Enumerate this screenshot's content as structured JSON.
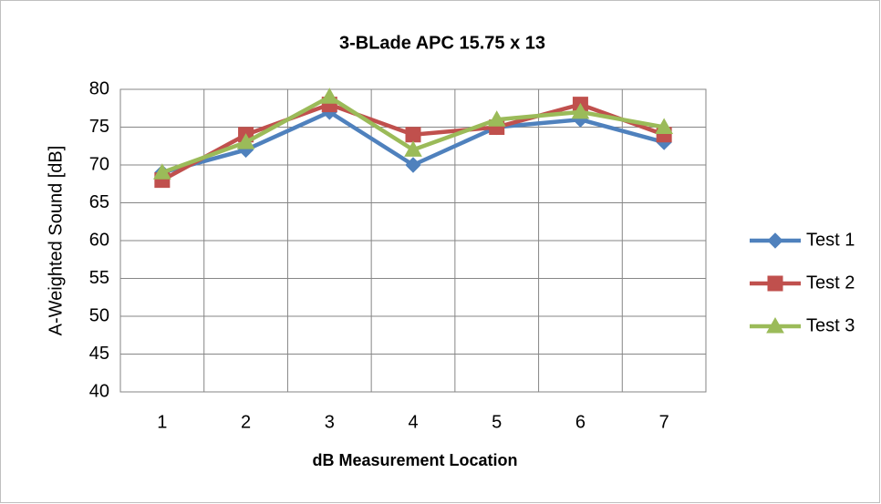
{
  "chart_data": {
    "type": "line",
    "title": "3-BLade APC 15.75 x 13",
    "x_label": "dB Measurement Location",
    "y_label": "A-Weighted Sound [dB]",
    "categories": [
      1,
      2,
      3,
      4,
      5,
      6,
      7
    ],
    "series": [
      {
        "name": "Test 1",
        "color": "#4f81bd",
        "marker": "diamond",
        "values": [
          69,
          72,
          77,
          70,
          75,
          76,
          73
        ]
      },
      {
        "name": "Test 2",
        "color": "#c0504d",
        "marker": "square",
        "values": [
          68,
          74,
          78,
          74,
          75,
          78,
          74
        ]
      },
      {
        "name": "Test 3",
        "color": "#9bbb59",
        "marker": "triangle",
        "values": [
          69,
          73,
          79,
          72,
          76,
          77,
          75
        ]
      }
    ],
    "ylim": [
      40,
      80
    ],
    "yticks": [
      40,
      45,
      50,
      55,
      60,
      65,
      70,
      75,
      80
    ],
    "grid": true,
    "legend": "right"
  }
}
